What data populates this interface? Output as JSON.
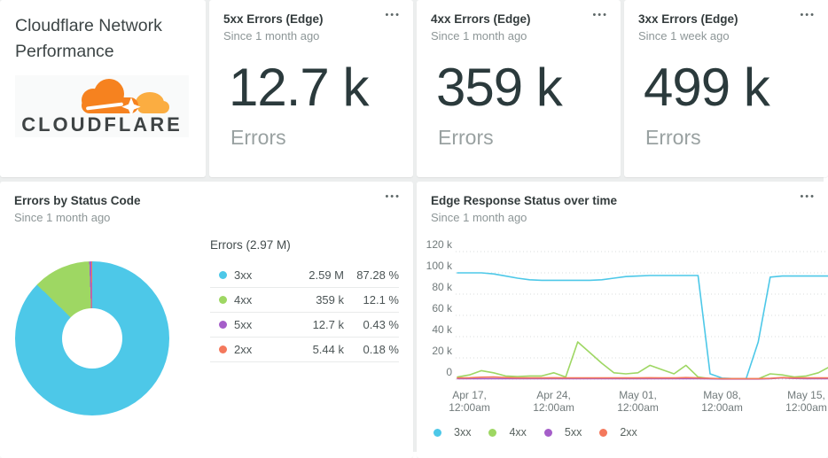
{
  "palette": {
    "cyan": "#4dc8e8",
    "green": "#9ed763",
    "purple": "#a55ec9",
    "salmon": "#f4785c"
  },
  "icons": {
    "ellipsis": "•••"
  },
  "title_card": {
    "title": "Cloudflare Network Performance",
    "logo_text": "CLOUDFLARE"
  },
  "metric_cards": [
    {
      "title": "5xx Errors (Edge)",
      "since": "Since 1 month ago",
      "value": "12.7 k",
      "label": "Errors"
    },
    {
      "title": "4xx Errors (Edge)",
      "since": "Since 1 month ago",
      "value": "359 k",
      "label": "Errors"
    },
    {
      "title": "3xx Errors (Edge)",
      "since": "Since 1 week ago",
      "value": "499 k",
      "label": "Errors"
    }
  ],
  "donut_card": {
    "title": "Errors by Status Code",
    "since": "Since 1 month ago",
    "table": {
      "header": "Errors (2.97 M)",
      "rows": [
        {
          "label": "3xx",
          "color": "cyan",
          "value": "2.59 M",
          "pct": "87.28 %"
        },
        {
          "label": "4xx",
          "color": "green",
          "value": "359 k",
          "pct": "12.1 %"
        },
        {
          "label": "5xx",
          "color": "purple",
          "value": "12.7 k",
          "pct": "0.43 %"
        },
        {
          "label": "2xx",
          "color": "salmon",
          "value": "5.44 k",
          "pct": "0.18 %"
        }
      ]
    }
  },
  "line_card": {
    "title": "Edge Response Status over time",
    "since": "Since 1 month ago",
    "legend": [
      {
        "label": "3xx",
        "color": "cyan"
      },
      {
        "label": "4xx",
        "color": "green"
      },
      {
        "label": "5xx",
        "color": "purple"
      },
      {
        "label": "2xx",
        "color": "salmon"
      }
    ]
  },
  "chart_data": [
    {
      "type": "pie",
      "title": "Errors by Status Code",
      "total_label": "Errors (2.97 M)",
      "slices": [
        {
          "label": "3xx",
          "value_display": "2.59 M",
          "pct": 87.28,
          "color": "cyan"
        },
        {
          "label": "4xx",
          "value_display": "359 k",
          "pct": 12.1,
          "color": "green"
        },
        {
          "label": "5xx",
          "value_display": "12.7 k",
          "pct": 0.43,
          "color": "purple"
        },
        {
          "label": "2xx",
          "value_display": "5.44 k",
          "pct": 0.18,
          "color": "salmon"
        }
      ]
    },
    {
      "type": "line",
      "title": "Edge Response Status over time",
      "unit": "k",
      "ylim": [
        0,
        120
      ],
      "grid": true,
      "legend_position": "bottom",
      "y_ticks": [
        {
          "label": "120 k",
          "v": 120
        },
        {
          "label": "100 k",
          "v": 100
        },
        {
          "label": "80 k",
          "v": 80
        },
        {
          "label": "60 k",
          "v": 60
        },
        {
          "label": "40 k",
          "v": 40
        },
        {
          "label": "20 k",
          "v": 20
        },
        {
          "label": "0",
          "v": 0
        }
      ],
      "x_ticks": [
        {
          "day": 1,
          "line1": "Apr 17,",
          "line2": "12:00am"
        },
        {
          "day": 8,
          "line1": "Apr 24,",
          "line2": "12:00am"
        },
        {
          "day": 15,
          "line1": "May 01,",
          "line2": "12:00am"
        },
        {
          "day": 22,
          "line1": "May 08,",
          "line2": "12:00am"
        },
        {
          "day": 29,
          "line1": "May 15,",
          "line2": "12:00am"
        }
      ],
      "series": [
        {
          "name": "3xx",
          "color": "cyan",
          "values": [
            100,
            100,
            100,
            99,
            97,
            95,
            93.5,
            93,
            93,
            93,
            93,
            93,
            93.5,
            95,
            96.5,
            97,
            97.5,
            97.5,
            97.5,
            97.5,
            97.5,
            5,
            1,
            0.5,
            0.5,
            35,
            96,
            97,
            97,
            97,
            97,
            97
          ]
        },
        {
          "name": "4xx",
          "color": "green",
          "values": [
            2,
            4,
            8,
            6,
            3,
            2.5,
            3,
            3,
            6,
            2,
            35,
            25,
            15,
            6,
            5,
            6,
            13,
            9,
            5,
            13,
            2,
            0.5,
            0.3,
            0.3,
            0.3,
            0.3,
            5,
            4,
            2,
            3,
            6,
            12
          ]
        },
        {
          "name": "5xx",
          "color": "purple",
          "values": [
            0.4,
            0.4,
            0.4,
            0.4,
            0.4,
            0.4,
            0.4,
            0.4,
            0.4,
            0.4,
            0.4,
            0.4,
            0.4,
            0.4,
            0.4,
            0.4,
            0.4,
            0.4,
            0.4,
            0.4,
            0.4,
            0.3,
            0.2,
            0.2,
            0.2,
            0.2,
            0.4,
            1.2,
            0.7,
            0.4,
            0.4,
            0.4
          ]
        },
        {
          "name": "2xx",
          "color": "salmon",
          "values": [
            1.2,
            1.3,
            1.8,
            2,
            1.5,
            1.2,
            1.2,
            1.2,
            1.3,
            1.2,
            1.2,
            1.2,
            1.2,
            1.2,
            1.2,
            1.2,
            1.3,
            1.2,
            1.2,
            1.5,
            1.2,
            0.8,
            0.5,
            0.5,
            0.5,
            0.5,
            0.8,
            1.5,
            1.2,
            1.2,
            1.2,
            1.2
          ]
        }
      ]
    }
  ]
}
